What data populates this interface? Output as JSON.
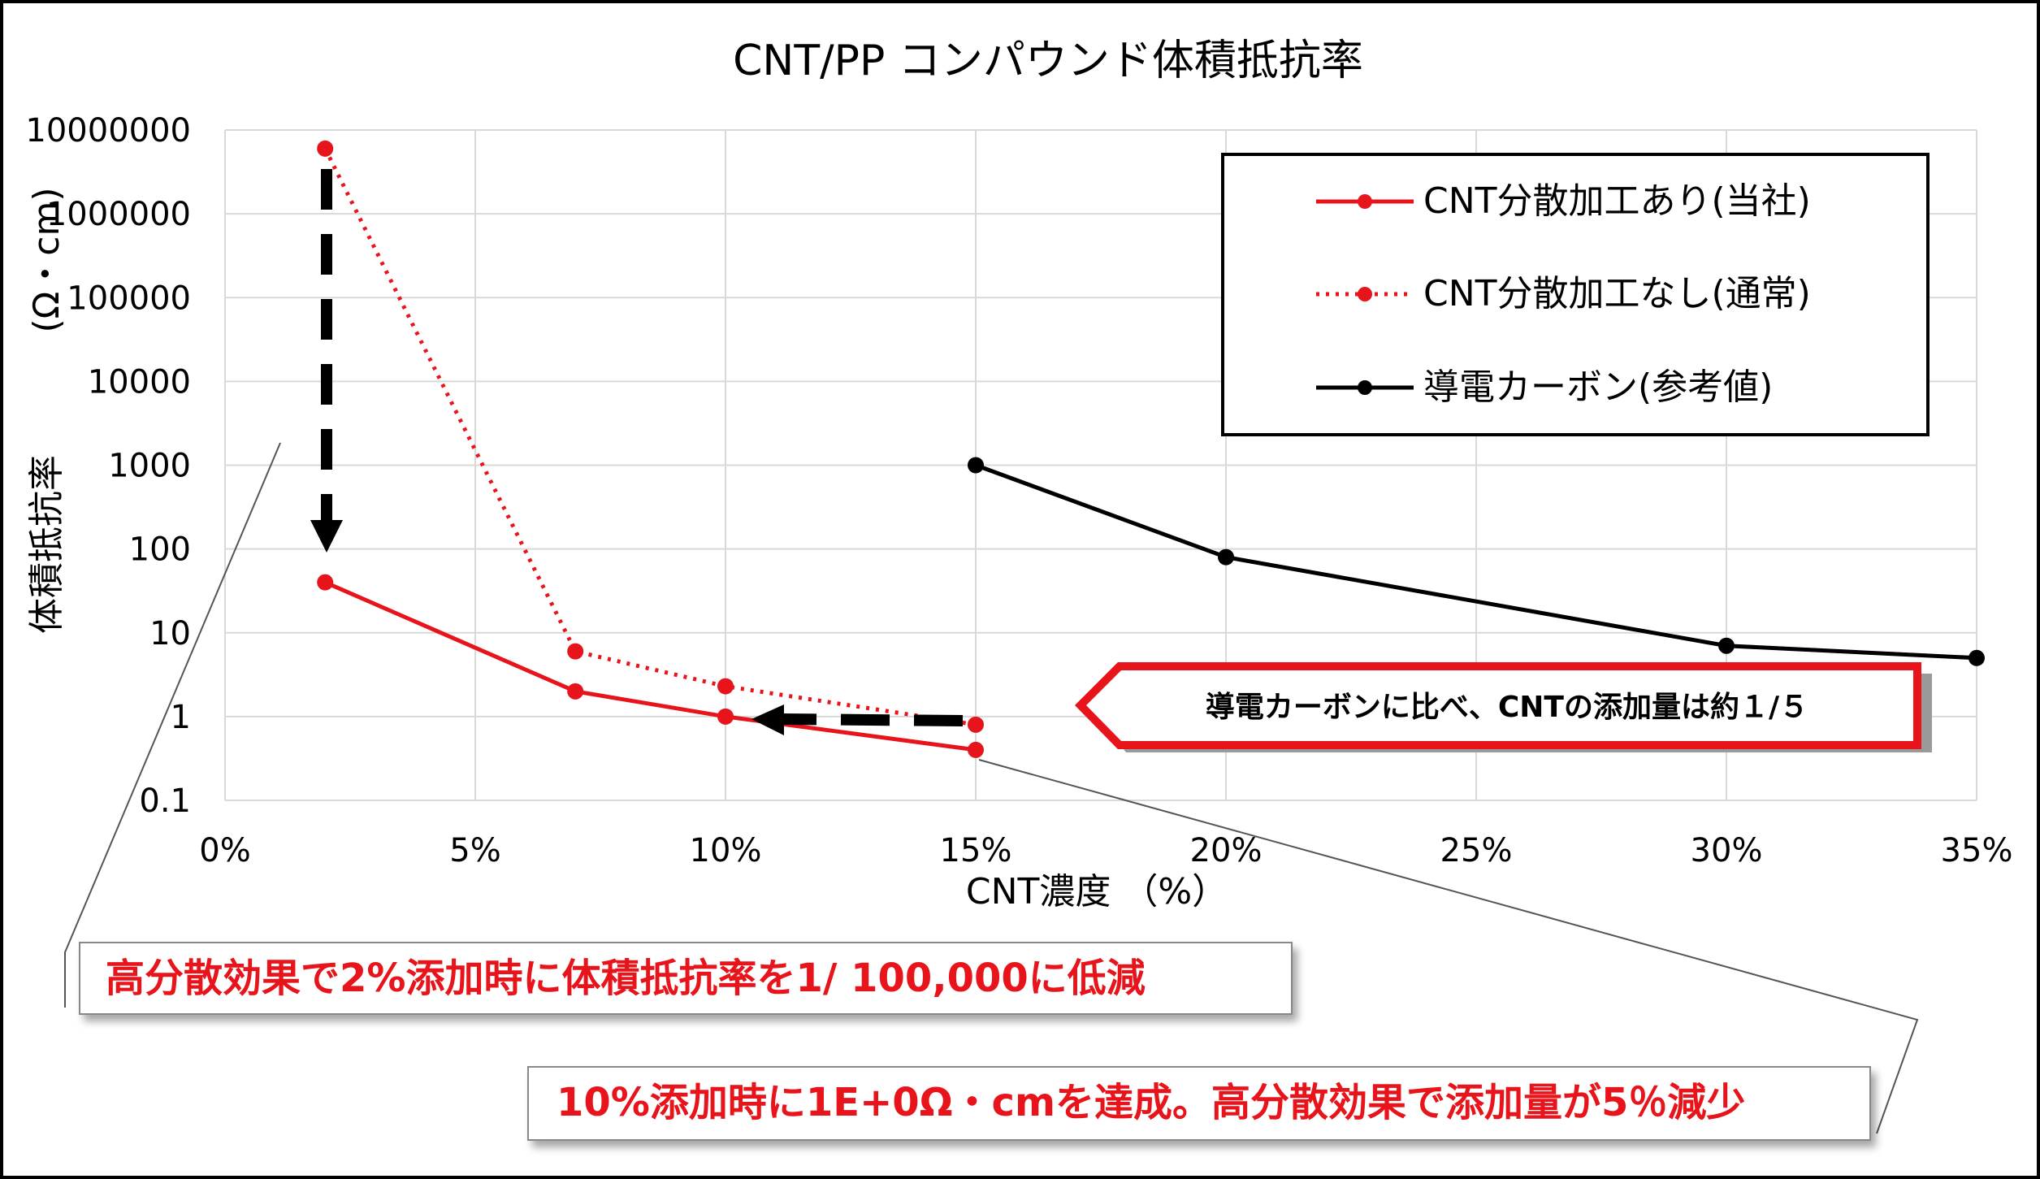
{
  "chart_data": {
    "type": "line",
    "title": "CNT/PP コンパウンド体積抵抗率",
    "xlabel": "CNT濃度 （%）",
    "ylabel": "体積抵抗率 (Ω・cm)",
    "ylabel_main": "体積抵抗率",
    "ylabel_unit": "(Ω・cm)",
    "y_scale": "log",
    "xlim": [
      0,
      35
    ],
    "ylim": [
      0.1,
      10000000
    ],
    "x_ticks": [
      0,
      5,
      10,
      15,
      20,
      25,
      30,
      35
    ],
    "x_tick_labels": [
      "0%",
      "5%",
      "10%",
      "15%",
      "20%",
      "25%",
      "30%",
      "35%"
    ],
    "y_ticks": [
      0.1,
      1,
      10,
      100,
      1000,
      10000,
      100000,
      1000000,
      10000000
    ],
    "y_tick_labels": [
      "0.1",
      "1",
      "10",
      "100",
      "1000",
      "10000",
      "100000",
      "1000000",
      "10000000"
    ],
    "grid": true,
    "legend_position": "top-right",
    "series": [
      {
        "name": "CNT分散加工あり(当社)",
        "color": "#e8141b",
        "line_style": "solid",
        "x": [
          2,
          7,
          10,
          15
        ],
        "y": [
          40,
          2,
          1,
          0.4
        ]
      },
      {
        "name": "CNT分散加工なし(通常)",
        "color": "#e8141b",
        "line_style": "dotted",
        "x": [
          2,
          7,
          10,
          15
        ],
        "y": [
          6000000,
          6,
          2.3,
          0.8
        ]
      },
      {
        "name": "導電カーボン(参考値)",
        "color": "#000000",
        "line_style": "solid",
        "x": [
          15,
          20,
          30,
          35
        ],
        "y": [
          1000,
          80,
          7,
          5
        ]
      }
    ]
  },
  "callouts": {
    "carbon_compare": "導電カーボンに比べ、CNTの添加量は約１/５",
    "effect_2pct": "高分散効果で2%添加時に体積抵抗率を1/ 100,000に低減",
    "effect_10pct": "10%添加時に1E+0Ω・cmを達成。高分散効果で添加量が5％減少"
  },
  "colors": {
    "red": "#e8141b",
    "black": "#000000",
    "grid": "#d9d9d9"
  }
}
